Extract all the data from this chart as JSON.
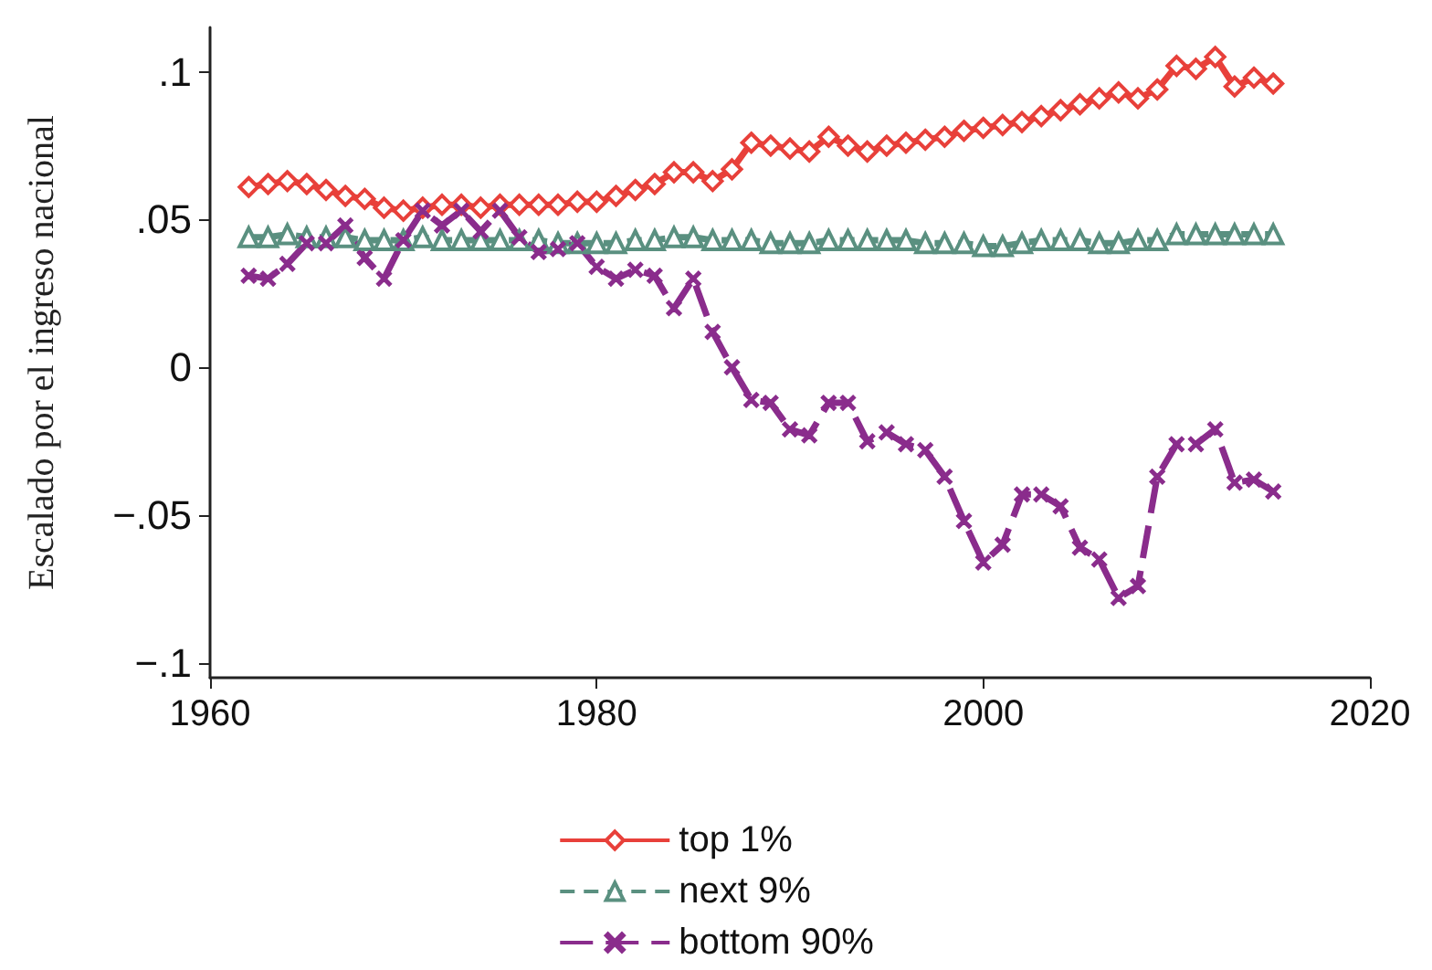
{
  "chart_data": {
    "type": "line",
    "ylabel": "Escalado por el ingreso nacional",
    "x": [
      1962,
      1963,
      1964,
      1965,
      1966,
      1967,
      1968,
      1969,
      1970,
      1971,
      1972,
      1973,
      1974,
      1975,
      1976,
      1977,
      1978,
      1979,
      1980,
      1981,
      1982,
      1983,
      1984,
      1985,
      1986,
      1987,
      1988,
      1989,
      1990,
      1991,
      1992,
      1993,
      1994,
      1995,
      1996,
      1997,
      1998,
      1999,
      2000,
      2001,
      2002,
      2003,
      2004,
      2005,
      2006,
      2007,
      2008,
      2009,
      2010,
      2011,
      2012,
      2013,
      2014,
      2015
    ],
    "series": [
      {
        "name": "top 1%",
        "color": "#e8403a",
        "marker": "diamond",
        "line_style": "solid",
        "values": [
          0.061,
          0.062,
          0.063,
          0.062,
          0.06,
          0.058,
          0.057,
          0.054,
          0.053,
          0.054,
          0.055,
          0.055,
          0.054,
          0.055,
          0.055,
          0.055,
          0.055,
          0.056,
          0.056,
          0.058,
          0.06,
          0.062,
          0.066,
          0.066,
          0.063,
          0.067,
          0.076,
          0.075,
          0.074,
          0.073,
          0.078,
          0.075,
          0.073,
          0.075,
          0.076,
          0.077,
          0.078,
          0.08,
          0.081,
          0.082,
          0.083,
          0.085,
          0.087,
          0.089,
          0.091,
          0.093,
          0.091,
          0.094,
          0.102,
          0.101,
          0.105,
          0.095,
          0.098,
          0.096
        ]
      },
      {
        "name": "next 9%",
        "color": "#5a9080",
        "marker": "triangle",
        "line_style": "dashed",
        "values": [
          0.044,
          0.044,
          0.045,
          0.044,
          0.044,
          0.044,
          0.043,
          0.043,
          0.043,
          0.044,
          0.043,
          0.043,
          0.043,
          0.043,
          0.043,
          0.043,
          0.042,
          0.042,
          0.042,
          0.042,
          0.043,
          0.043,
          0.044,
          0.044,
          0.043,
          0.043,
          0.043,
          0.042,
          0.042,
          0.042,
          0.043,
          0.043,
          0.043,
          0.043,
          0.043,
          0.042,
          0.042,
          0.042,
          0.041,
          0.041,
          0.042,
          0.043,
          0.043,
          0.043,
          0.042,
          0.042,
          0.043,
          0.043,
          0.045,
          0.045,
          0.045,
          0.045,
          0.045,
          0.045
        ]
      },
      {
        "name": "bottom 90%",
        "color": "#8a2c8c",
        "marker": "cross",
        "line_style": "dashed",
        "values": [
          0.031,
          0.03,
          0.035,
          0.042,
          0.042,
          0.048,
          0.037,
          0.03,
          0.043,
          0.053,
          0.048,
          0.053,
          0.046,
          0.053,
          0.044,
          0.039,
          0.04,
          0.042,
          0.034,
          0.03,
          0.033,
          0.031,
          0.02,
          0.03,
          0.012,
          0.0,
          -0.011,
          -0.012,
          -0.021,
          -0.023,
          -0.012,
          -0.012,
          -0.025,
          -0.022,
          -0.026,
          -0.028,
          -0.037,
          -0.052,
          -0.066,
          -0.06,
          -0.043,
          -0.043,
          -0.047,
          -0.061,
          -0.065,
          -0.078,
          -0.074,
          -0.037,
          -0.026,
          -0.026,
          -0.021,
          -0.039,
          -0.038,
          -0.042
        ]
      }
    ],
    "xlim": [
      1960,
      2020
    ],
    "xticks": [
      1960,
      1980,
      2000,
      2020
    ],
    "ylim": [
      -0.105,
      0.115
    ],
    "yticks": [
      {
        "value": -0.1,
        "label": "−.1"
      },
      {
        "value": -0.05,
        "label": "−.05"
      },
      0,
      {
        "value": 0.05,
        "label": ".05"
      },
      {
        "value": 0.1,
        "label": ".1"
      }
    ],
    "grid": false,
    "legend": "bottom"
  }
}
